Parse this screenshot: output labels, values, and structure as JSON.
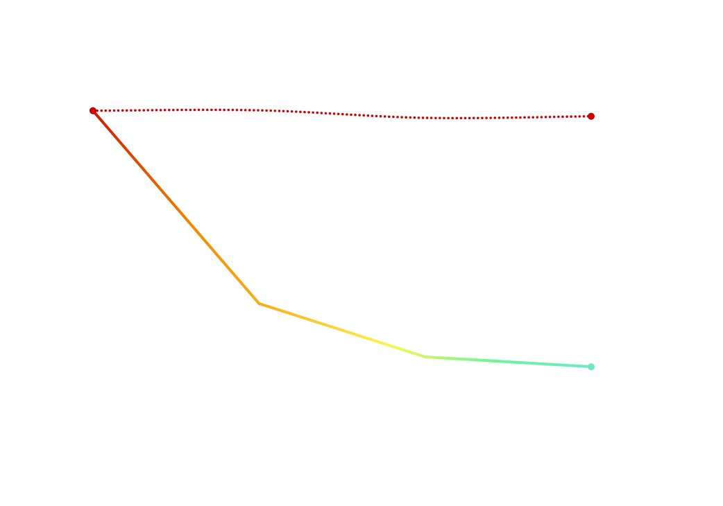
{
  "chart_data": {
    "type": "line",
    "categories": [
      null,
      null,
      null,
      null
    ],
    "ylim": [
      0,
      100
    ],
    "series": [
      {
        "values": [
          82.5,
          33.7,
          20.2,
          17.7
        ],
        "style": "solid",
        "smooth": false,
        "gradient": [
          "#cc1a00",
          "#f08a00",
          "#fbbf24",
          "#f7f752",
          "#6cf59a",
          "#6ee8c8"
        ]
      },
      {
        "values": [
          82.5,
          82.6,
          80.7,
          81.1
        ],
        "style": "dotted",
        "smooth": true,
        "color": "#cc0000"
      }
    ]
  }
}
